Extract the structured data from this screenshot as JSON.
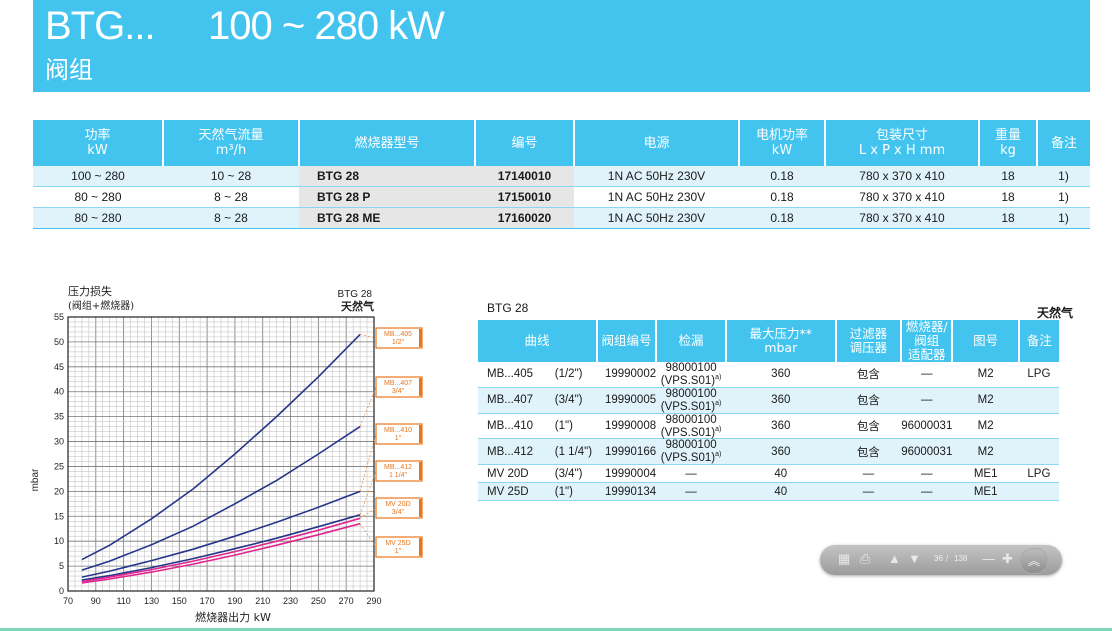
{
  "header": {
    "model": "BTG...",
    "power": "100 ~ 280 kW",
    "subtitle": "阀组"
  },
  "spec_table": {
    "headers": [
      [
        "功率",
        "kW"
      ],
      [
        "天然气流量",
        "m³/h"
      ],
      [
        "燃烧器型号"
      ],
      [
        "编号"
      ],
      [
        "电源"
      ],
      [
        "电机功率",
        "kW"
      ],
      [
        "包装尺寸",
        "L x P x H  mm"
      ],
      [
        "重量",
        "kg"
      ],
      [
        "备注"
      ]
    ],
    "rows": [
      [
        "100 ~ 280",
        "10 ~ 28",
        "BTG 28",
        "17140010",
        "1N AC 50Hz 230V",
        "0.18",
        "780 x 370 x 410",
        "18",
        "1)"
      ],
      [
        "80 ~ 280",
        "8 ~ 28",
        "BTG 28 P",
        "17150010",
        "1N AC 50Hz 230V",
        "0.18",
        "780 x 370 x 410",
        "18",
        "1)"
      ],
      [
        "80 ~ 280",
        "8 ~ 28",
        "BTG 28 ME",
        "17160020",
        "1N AC 50Hz 230V",
        "0.18",
        "780 x 370 x 410",
        "18",
        "1)"
      ]
    ]
  },
  "chart_data": {
    "type": "line",
    "title": "BTG 28",
    "subtitle": "天然气",
    "ylabel_top": "压力损失",
    "ylabel_top2": "(阀组+燃烧器)",
    "ylabel": "mbar",
    "xlabel": "燃烧器出力  kW",
    "xlim": [
      70,
      290
    ],
    "ylim": [
      0,
      55
    ],
    "xticks": [
      70,
      90,
      110,
      130,
      150,
      170,
      190,
      210,
      230,
      250,
      270,
      290
    ],
    "yticks": [
      0,
      5,
      10,
      15,
      20,
      25,
      30,
      35,
      40,
      45,
      50,
      55
    ],
    "grid": true,
    "series": [
      {
        "name": "MB...405 1/2\"",
        "color": "#27358a",
        "x": [
          80,
          100,
          130,
          160,
          190,
          220,
          250,
          280
        ],
        "y": [
          6.3,
          9.2,
          14.5,
          20.5,
          27.5,
          35,
          43,
          51.5
        ]
      },
      {
        "name": "MB...407 3/4\"",
        "color": "#27358a",
        "x": [
          80,
          100,
          130,
          160,
          190,
          220,
          250,
          280
        ],
        "y": [
          4.2,
          6.0,
          9.3,
          13.0,
          17.5,
          22.2,
          27.5,
          33.0
        ]
      },
      {
        "name": "MB...410 1\"",
        "color": "#27358a",
        "x": [
          80,
          100,
          130,
          160,
          190,
          220,
          250,
          280
        ],
        "y": [
          2.8,
          4.0,
          6.1,
          8.4,
          11.0,
          13.8,
          16.8,
          20.0
        ]
      },
      {
        "name": "MB...412 1 1/4\"",
        "color": "#27358a",
        "x": [
          80,
          100,
          130,
          160,
          190,
          220,
          250,
          280
        ],
        "y": [
          2.2,
          3.1,
          4.7,
          6.5,
          8.5,
          10.6,
          12.9,
          15.3
        ]
      },
      {
        "name": "MV 20D 3/4\"",
        "color": "#e0258f",
        "x": [
          80,
          100,
          130,
          160,
          190,
          220,
          250,
          280
        ],
        "y": [
          1.9,
          2.8,
          4.3,
          6.0,
          7.9,
          10.0,
          12.2,
          14.6
        ]
      },
      {
        "name": "MV 25D 1\"",
        "color": "#e0258f",
        "x": [
          80,
          100,
          130,
          160,
          190,
          220,
          250,
          280
        ],
        "y": [
          1.6,
          2.4,
          3.8,
          5.4,
          7.2,
          9.2,
          11.3,
          13.5
        ]
      }
    ],
    "legend_labels": [
      [
        "MB...405",
        "1/2\""
      ],
      [
        "MB...407",
        "3/4\""
      ],
      [
        "MB...410",
        "1\""
      ],
      [
        "MB...412",
        "1 1/4\""
      ],
      [
        "MV  20D",
        "3/4\""
      ],
      [
        "MV  25D",
        "1\""
      ]
    ]
  },
  "valve_table": {
    "title": "BTG 28",
    "gas": "天然气",
    "headers": [
      [
        "曲线"
      ],
      [
        "阀组编号"
      ],
      [
        "检漏"
      ],
      [
        "最大压力**",
        "mbar"
      ],
      [
        "过滤器",
        "调压器"
      ],
      [
        "燃烧器/阀组",
        "适配器"
      ],
      [
        "图号"
      ],
      [
        "备注"
      ]
    ],
    "rows": [
      [
        "MB...405",
        "(1/2\")",
        "19990002",
        "98000100 (VPS.S01)",
        "a)",
        "360",
        "包含",
        "—",
        "M2",
        "LPG"
      ],
      [
        "MB...407",
        "(3/4\")",
        "19990005",
        "98000100 (VPS.S01)",
        "a)",
        "360",
        "包含",
        "—",
        "M2",
        ""
      ],
      [
        "MB...410",
        "(1\")",
        "19990008",
        "98000100 (VPS.S01)",
        "a)",
        "360",
        "包含",
        "96000031",
        "M2",
        ""
      ],
      [
        "MB...412",
        "(1 1/4\")",
        "19990166",
        "98000100 (VPS.S01)",
        "a)",
        "360",
        "包含",
        "96000031",
        "M2",
        ""
      ],
      [
        "MV  20D",
        "(3/4\")",
        "19990004",
        "—",
        "",
        "40",
        "—",
        "—",
        "ME1",
        "LPG"
      ],
      [
        "MV  25D",
        "(1\")",
        "19990134",
        "—",
        "",
        "40",
        "—",
        "—",
        "ME1",
        ""
      ]
    ]
  },
  "pager": {
    "page": "36",
    "sep": "/",
    "total": "138"
  },
  "colors": {
    "accent": "#43c4ef",
    "curve_blue": "#27358a",
    "curve_pink": "#e0258f",
    "legend_orange": "#e8761e"
  }
}
